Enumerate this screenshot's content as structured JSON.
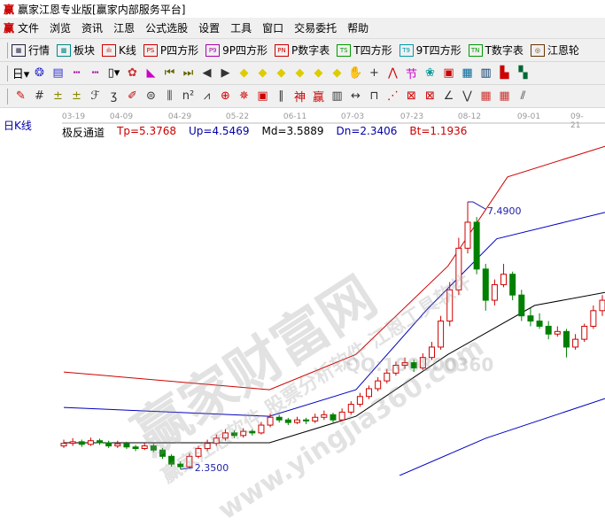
{
  "window": {
    "title": "赢家江恩专业版[赢家内部服务平台]",
    "logo": "赢"
  },
  "menu": [
    "文件",
    "浏览",
    "资讯",
    "江恩",
    "公式选股",
    "设置",
    "工具",
    "窗口",
    "交易委托",
    "帮助"
  ],
  "toolbar1": [
    {
      "icon": "grid-icon",
      "badge": "▦",
      "label": "行情",
      "color": "#224"
    },
    {
      "icon": "blocks-icon",
      "badge": "▩",
      "label": "板块",
      "color": "#088"
    },
    {
      "icon": "candles-icon",
      "badge": "ılı",
      "label": "K线",
      "color": "#c00"
    },
    {
      "icon": "ps-icon",
      "badge": "PS",
      "label": "P四方形",
      "color": "#c00"
    },
    {
      "icon": "p9-icon",
      "badge": "P9",
      "label": "9P四方形",
      "color": "#a0a"
    },
    {
      "icon": "pn-icon",
      "badge": "PN",
      "label": "P数字表",
      "color": "#c00"
    },
    {
      "icon": "ts-icon",
      "badge": "TS",
      "label": "T四方形",
      "color": "#090"
    },
    {
      "icon": "t9-icon",
      "badge": "T9",
      "label": "9T四方形",
      "color": "#09a"
    },
    {
      "icon": "tn-icon",
      "badge": "TN",
      "label": "T数字表",
      "color": "#090"
    },
    {
      "icon": "gann-wheel-icon",
      "badge": "◎",
      "label": "江恩轮",
      "color": "#630"
    }
  ],
  "toolbar2": [
    {
      "name": "period-day-dropdown",
      "glyph": "日▾",
      "color": "#000"
    },
    {
      "name": "overlay-icon",
      "glyph": "❂",
      "color": "#33c"
    },
    {
      "name": "notes-icon",
      "glyph": "▤",
      "color": "#33c"
    },
    {
      "name": "bars3-icon",
      "glyph": "┅",
      "color": "#a0a"
    },
    {
      "name": "bars9-icon",
      "glyph": "┅",
      "color": "#a0a"
    },
    {
      "name": "candle-type-dropdown",
      "glyph": "▯▾",
      "color": "#000"
    },
    {
      "name": "pattern-icon",
      "glyph": "✿",
      "color": "#c33"
    },
    {
      "name": "flag-icon",
      "glyph": "◣",
      "color": "#c0c"
    },
    {
      "name": "first-icon",
      "glyph": "⏮",
      "color": "#660"
    },
    {
      "name": "last-icon",
      "glyph": "⏭",
      "color": "#660"
    },
    {
      "name": "prev-icon",
      "glyph": "◀",
      "color": "#333"
    },
    {
      "name": "next-icon",
      "glyph": "▶",
      "color": "#333"
    },
    {
      "name": "left-diamond-icon",
      "glyph": "◆",
      "color": "#dc0"
    },
    {
      "name": "right-diamond-icon",
      "glyph": "◆",
      "color": "#dc0"
    },
    {
      "name": "expand-icon",
      "glyph": "◆",
      "color": "#dc0"
    },
    {
      "name": "shrink-icon",
      "glyph": "◆",
      "color": "#dc0"
    },
    {
      "name": "zoom-in-icon",
      "glyph": "◆",
      "color": "#dc0"
    },
    {
      "name": "zoom-out-icon",
      "glyph": "◆",
      "color": "#dc0"
    },
    {
      "name": "hand-icon",
      "glyph": "✋",
      "color": "#333"
    },
    {
      "name": "crosshair-icon",
      "glyph": "+",
      "color": "#333"
    },
    {
      "name": "wave-icon",
      "glyph": "⋀",
      "color": "#c00"
    },
    {
      "name": "node-icon",
      "glyph": "节",
      "color": "#c0c"
    },
    {
      "name": "chart-icon",
      "glyph": "❀",
      "color": "#099"
    },
    {
      "name": "calendar-icon",
      "glyph": "▣",
      "color": "#c00"
    },
    {
      "name": "calculator-icon",
      "glyph": "▦",
      "color": "#069"
    },
    {
      "name": "report-icon",
      "glyph": "▥",
      "color": "#036"
    },
    {
      "name": "save-icon",
      "glyph": "▙",
      "color": "#c00"
    },
    {
      "name": "export-icon",
      "glyph": "▚",
      "color": "#063"
    }
  ],
  "toolbar3": [
    {
      "name": "pencil-icon",
      "glyph": "✎",
      "color": "#c00"
    },
    {
      "name": "hash-icon",
      "glyph": "#",
      "color": "#333"
    },
    {
      "name": "gold-icon",
      "glyph": "±",
      "color": "#880"
    },
    {
      "name": "gold2-icon",
      "glyph": "±",
      "color": "#880"
    },
    {
      "name": "fib-icon",
      "glyph": "ℱ",
      "color": "#333"
    },
    {
      "name": "spiral-icon",
      "glyph": "ʒ",
      "color": "#333"
    },
    {
      "name": "pen-icon",
      "glyph": "✐",
      "color": "#c00"
    },
    {
      "name": "circle-icon",
      "glyph": "⊜",
      "color": "#333"
    },
    {
      "name": "lines-icon",
      "glyph": "⫼",
      "color": "#333"
    },
    {
      "name": "square-icon",
      "glyph": "n²",
      "color": "#333"
    },
    {
      "name": "fan-icon",
      "glyph": "⩘",
      "color": "#333"
    },
    {
      "name": "target-icon",
      "glyph": "⊕",
      "color": "#c00"
    },
    {
      "name": "star-icon",
      "glyph": "✵",
      "color": "#c00"
    },
    {
      "name": "box-icon",
      "glyph": "▣",
      "color": "#c00"
    },
    {
      "name": "angle-icon",
      "glyph": "∥",
      "color": "#333"
    },
    {
      "name": "god-icon",
      "glyph": "神",
      "color": "#c00"
    },
    {
      "name": "win-icon",
      "glyph": "赢",
      "color": "#c00"
    },
    {
      "name": "ruler-icon",
      "glyph": "▥",
      "color": "#333"
    },
    {
      "name": "measure-icon",
      "glyph": "↔",
      "color": "#333"
    },
    {
      "name": "frame-icon",
      "glyph": "⊓",
      "color": "#333"
    },
    {
      "name": "rays-icon",
      "glyph": "⋰",
      "color": "#c00"
    },
    {
      "name": "boxfan-icon",
      "glyph": "⊠",
      "color": "#c00"
    },
    {
      "name": "gridfan-icon",
      "glyph": "⊠",
      "color": "#c00"
    },
    {
      "name": "angle2-icon",
      "glyph": "∠",
      "color": "#333"
    },
    {
      "name": "zigzag-icon",
      "glyph": "⋁",
      "color": "#333"
    },
    {
      "name": "grid2-icon",
      "glyph": "▦",
      "color": "#c33"
    },
    {
      "name": "grid3-icon",
      "glyph": "▦",
      "color": "#c33"
    },
    {
      "name": "parallel-icon",
      "glyph": "⫽",
      "color": "#333"
    }
  ],
  "chart_header": {
    "period_label": "日K线",
    "indicator_name": "极反通道",
    "values": [
      {
        "text": "Tp=5.3768",
        "color": "#c00"
      },
      {
        "text": "Up=4.5469",
        "color": "#00a"
      },
      {
        "text": "Md=3.5889",
        "color": "#000"
      },
      {
        "text": "Dn=2.3406",
        "color": "#00a"
      },
      {
        "text": "Bt=1.1936",
        "color": "#c00"
      }
    ]
  },
  "chart_data": {
    "type": "candlestick",
    "x_ticks": [
      "03-19",
      "04-09",
      "04-29",
      "05-22",
      "06-11",
      "07-03",
      "07-23",
      "08-12",
      "09-01",
      "09-21"
    ],
    "ylim": [
      2.2,
      8.8
    ],
    "up_color": "#d00000",
    "down_color": "#008000",
    "candles_ohlc": [
      [
        2.8,
        2.92,
        2.76,
        2.85
      ],
      [
        2.85,
        2.95,
        2.8,
        2.88
      ],
      [
        2.88,
        2.92,
        2.78,
        2.83
      ],
      [
        2.83,
        2.96,
        2.8,
        2.9
      ],
      [
        2.9,
        2.94,
        2.82,
        2.86
      ],
      [
        2.86,
        2.9,
        2.76,
        2.8
      ],
      [
        2.8,
        2.9,
        2.76,
        2.84
      ],
      [
        2.84,
        2.88,
        2.74,
        2.78
      ],
      [
        2.78,
        2.82,
        2.7,
        2.75
      ],
      [
        2.75,
        2.86,
        2.72,
        2.8
      ],
      [
        2.8,
        2.84,
        2.68,
        2.72
      ],
      [
        2.72,
        2.76,
        2.55,
        2.6
      ],
      [
        2.6,
        2.64,
        2.4,
        2.45
      ],
      [
        2.45,
        2.5,
        2.35,
        2.4
      ],
      [
        2.4,
        2.66,
        2.38,
        2.6
      ],
      [
        2.6,
        2.8,
        2.56,
        2.75
      ],
      [
        2.75,
        2.92,
        2.7,
        2.85
      ],
      [
        2.85,
        3.02,
        2.8,
        2.95
      ],
      [
        2.95,
        3.12,
        2.9,
        3.05
      ],
      [
        3.05,
        3.1,
        2.95,
        3.0
      ],
      [
        3.0,
        3.14,
        2.96,
        3.08
      ],
      [
        3.08,
        3.12,
        3.0,
        3.05
      ],
      [
        3.05,
        3.26,
        3.02,
        3.2
      ],
      [
        3.2,
        3.42,
        3.16,
        3.35
      ],
      [
        3.35,
        3.4,
        3.25,
        3.3
      ],
      [
        3.3,
        3.34,
        3.2,
        3.25
      ],
      [
        3.25,
        3.36,
        3.22,
        3.3
      ],
      [
        3.3,
        3.34,
        3.22,
        3.28
      ],
      [
        3.28,
        3.42,
        3.24,
        3.35
      ],
      [
        3.35,
        3.48,
        3.3,
        3.4
      ],
      [
        3.4,
        3.44,
        3.25,
        3.3
      ],
      [
        3.3,
        3.52,
        3.28,
        3.45
      ],
      [
        3.45,
        3.66,
        3.4,
        3.6
      ],
      [
        3.6,
        3.82,
        3.55,
        3.75
      ],
      [
        3.75,
        3.96,
        3.7,
        3.9
      ],
      [
        3.9,
        4.12,
        3.85,
        4.05
      ],
      [
        4.05,
        4.28,
        4.0,
        4.2
      ],
      [
        4.2,
        4.42,
        4.15,
        4.35
      ],
      [
        4.35,
        4.5,
        4.28,
        4.4
      ],
      [
        4.4,
        4.46,
        4.22,
        4.3
      ],
      [
        4.3,
        4.58,
        4.26,
        4.5
      ],
      [
        4.5,
        4.8,
        4.45,
        4.7
      ],
      [
        4.7,
        5.3,
        4.65,
        5.2
      ],
      [
        5.2,
        5.95,
        5.1,
        5.8
      ],
      [
        5.8,
        6.8,
        5.7,
        6.6
      ],
      [
        6.6,
        7.49,
        6.5,
        7.1
      ],
      [
        7.1,
        7.2,
        6.1,
        6.2
      ],
      [
        6.2,
        6.3,
        5.4,
        5.6
      ],
      [
        5.6,
        6.0,
        5.5,
        5.9
      ],
      [
        5.9,
        6.3,
        5.85,
        6.1
      ],
      [
        6.1,
        6.15,
        5.6,
        5.7
      ],
      [
        5.7,
        5.8,
        5.2,
        5.3
      ],
      [
        5.3,
        5.45,
        5.1,
        5.2
      ],
      [
        5.2,
        5.35,
        5.05,
        5.1
      ],
      [
        5.1,
        5.2,
        4.85,
        4.95
      ],
      [
        4.95,
        5.1,
        4.9,
        5.0
      ],
      [
        5.0,
        5.05,
        4.5,
        4.7
      ],
      [
        4.7,
        4.95,
        4.65,
        4.85
      ],
      [
        4.85,
        5.15,
        4.8,
        5.1
      ],
      [
        5.1,
        5.5,
        5.05,
        5.4
      ],
      [
        5.4,
        5.7,
        5.3,
        5.6
      ]
    ],
    "annotations": [
      {
        "text": "7.4900",
        "at": "high"
      },
      {
        "text": "2.3500",
        "at": "low"
      }
    ],
    "channel_lines": [
      {
        "color": "#d00000",
        "points": [
          [
            0,
            4.22
          ],
          [
            0.38,
            3.88
          ],
          [
            0.54,
            4.56
          ],
          [
            0.71,
            6.26
          ],
          [
            0.82,
            7.97
          ],
          [
            1,
            8.56
          ]
        ]
      },
      {
        "color": "#0000c0",
        "points": [
          [
            0,
            3.54
          ],
          [
            0.38,
            3.37
          ],
          [
            0.54,
            3.88
          ],
          [
            0.67,
            5.41
          ],
          [
            0.8,
            6.78
          ],
          [
            1,
            7.29
          ]
        ]
      },
      {
        "color": "#000000",
        "points": [
          [
            0,
            2.86
          ],
          [
            0.38,
            2.86
          ],
          [
            0.54,
            3.37
          ],
          [
            0.71,
            4.56
          ],
          [
            0.87,
            5.5
          ],
          [
            1,
            5.75
          ]
        ]
      },
      {
        "color": "#0000c0",
        "points": [
          [
            0.62,
            2.23
          ],
          [
            0.78,
            2.95
          ],
          [
            1,
            3.71
          ]
        ]
      }
    ]
  },
  "watermark": {
    "big": "赢家财富网",
    "line2": "赢家江恩软件 股票分析软件 江恩工具软件",
    "url": "www.yingjia360.com",
    "qq": "QQ:100800360"
  }
}
